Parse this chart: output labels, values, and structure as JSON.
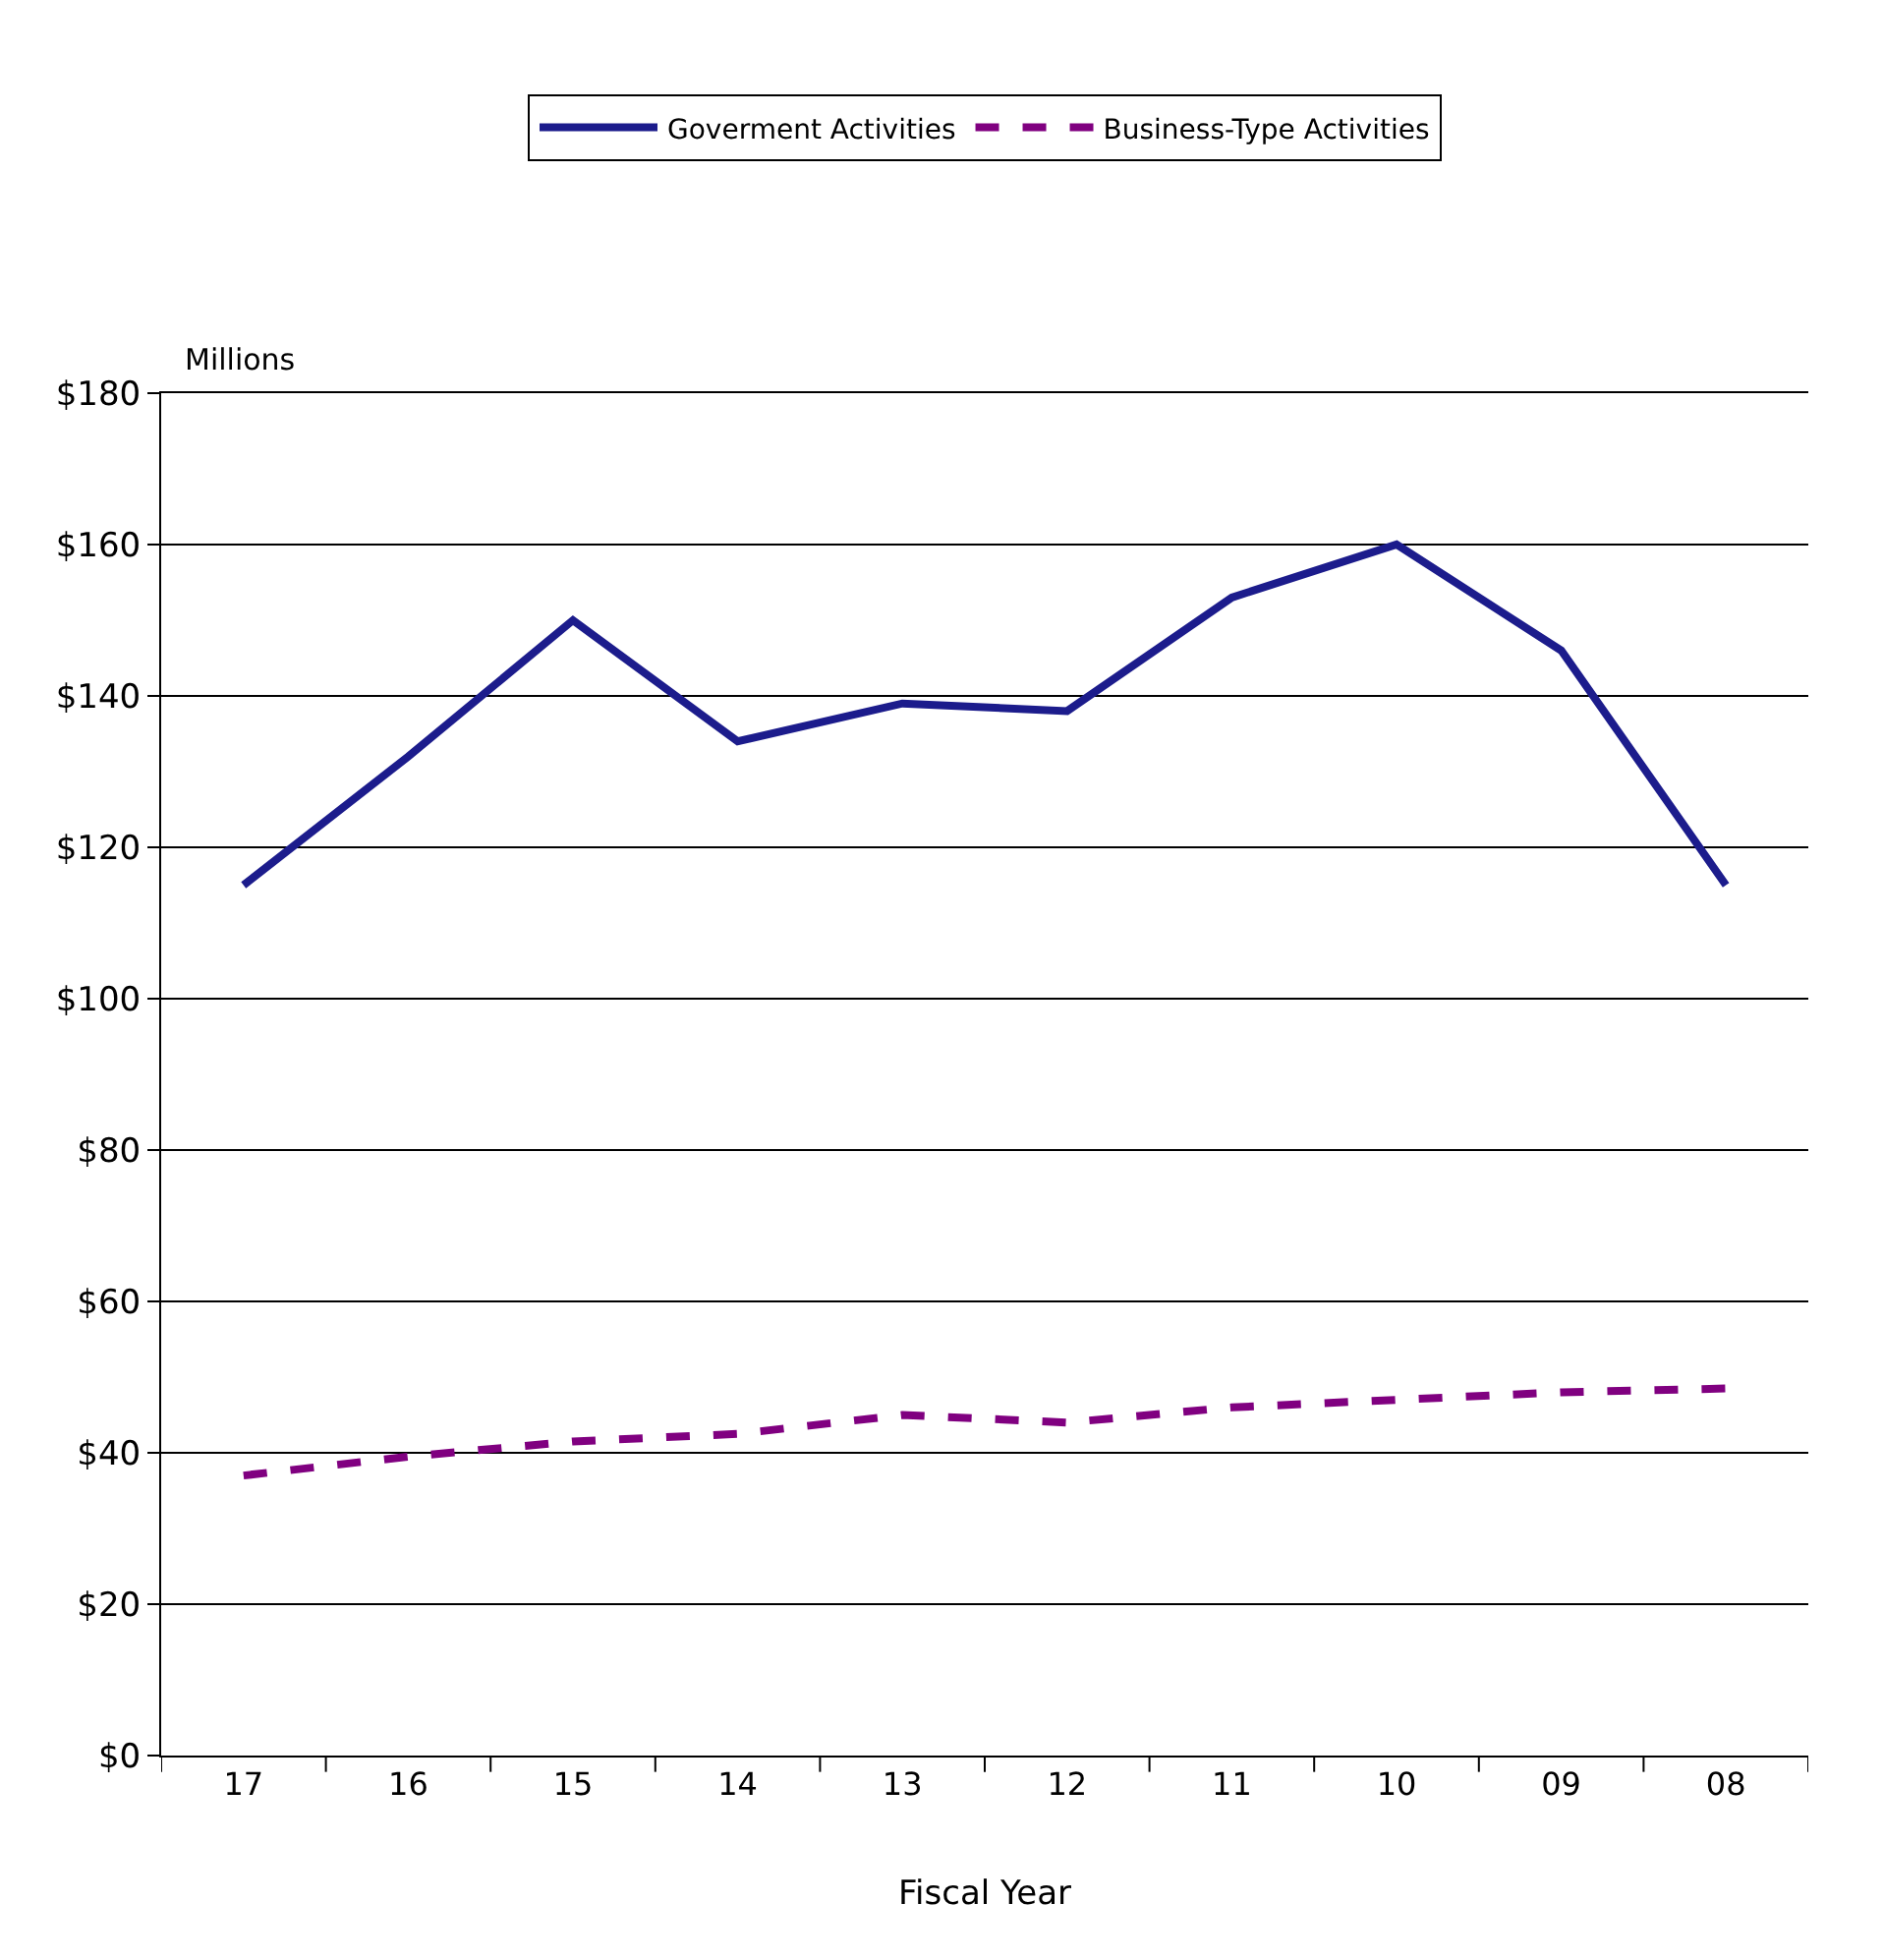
{
  "chart_data": {
    "type": "line",
    "xlabel": "Fiscal Year",
    "ylabel": "Millions",
    "categories": [
      "17",
      "16",
      "15",
      "14",
      "13",
      "12",
      "11",
      "10",
      "09",
      "08"
    ],
    "series": [
      {
        "name": "Goverment Activities",
        "color": "#1c1c8c",
        "line_style": "solid",
        "values": [
          115,
          132,
          150,
          134,
          139,
          138,
          153,
          160,
          146,
          115
        ]
      },
      {
        "name": "Business-Type Activities",
        "color": "#800080",
        "line_style": "dashed",
        "values": [
          37,
          39.5,
          41.5,
          42.5,
          45,
          44,
          46,
          47,
          48,
          48.5
        ]
      }
    ],
    "ylim": [
      0,
      180
    ],
    "yticks": [
      {
        "value": 0,
        "label": "$0"
      },
      {
        "value": 20,
        "label": "$20"
      },
      {
        "value": 40,
        "label": "$40"
      },
      {
        "value": 60,
        "label": "$60"
      },
      {
        "value": 80,
        "label": "$80"
      },
      {
        "value": 100,
        "label": "$100"
      },
      {
        "value": 120,
        "label": "$120"
      },
      {
        "value": 140,
        "label": "$140"
      },
      {
        "value": 160,
        "label": "$160"
      },
      {
        "value": 180,
        "label": "$180"
      }
    ],
    "grid": "y",
    "legend": "top",
    "marker": "none"
  }
}
